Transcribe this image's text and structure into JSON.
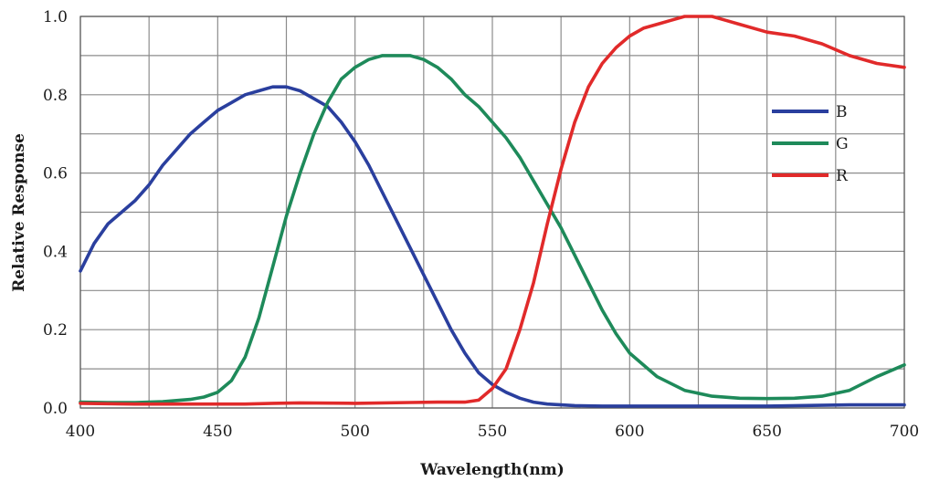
{
  "chart_data": {
    "type": "line",
    "title": "",
    "xlabel": "Wavelength(nm)",
    "ylabel": "Relative Response",
    "xlim": [
      400,
      700
    ],
    "ylim": [
      0,
      1.0
    ],
    "grid": true,
    "legend_position": "right",
    "x_ticks": [
      "400",
      "450",
      "500",
      "550",
      "600",
      "650",
      "700"
    ],
    "y_ticks": [
      "0.0",
      "0.2",
      "0.4",
      "0.6",
      "0.8",
      "1.0"
    ],
    "series": [
      {
        "name": "B",
        "color": "#2a3f9e",
        "x": [
          400,
          405,
          410,
          415,
          420,
          425,
          430,
          435,
          440,
          445,
          450,
          455,
          460,
          465,
          470,
          475,
          480,
          485,
          490,
          495,
          500,
          505,
          510,
          515,
          520,
          525,
          530,
          535,
          540,
          545,
          550,
          555,
          560,
          565,
          570,
          575,
          580,
          590,
          600,
          620,
          650,
          680,
          700
        ],
        "y": [
          0.35,
          0.42,
          0.47,
          0.5,
          0.53,
          0.57,
          0.62,
          0.66,
          0.7,
          0.73,
          0.76,
          0.78,
          0.8,
          0.81,
          0.82,
          0.82,
          0.81,
          0.79,
          0.77,
          0.73,
          0.68,
          0.62,
          0.55,
          0.48,
          0.41,
          0.34,
          0.27,
          0.2,
          0.14,
          0.09,
          0.06,
          0.04,
          0.025,
          0.015,
          0.01,
          0.008,
          0.006,
          0.005,
          0.005,
          0.005,
          0.005,
          0.008,
          0.008
        ]
      },
      {
        "name": "G",
        "color": "#1e8a5a",
        "x": [
          400,
          410,
          420,
          430,
          440,
          445,
          450,
          455,
          460,
          465,
          470,
          475,
          480,
          485,
          490,
          495,
          500,
          505,
          510,
          515,
          520,
          525,
          530,
          535,
          540,
          545,
          550,
          555,
          560,
          565,
          570,
          575,
          580,
          585,
          590,
          595,
          600,
          610,
          620,
          630,
          640,
          650,
          660,
          670,
          680,
          690,
          700
        ],
        "y": [
          0.015,
          0.014,
          0.014,
          0.016,
          0.022,
          0.028,
          0.04,
          0.07,
          0.13,
          0.23,
          0.36,
          0.49,
          0.6,
          0.7,
          0.78,
          0.84,
          0.87,
          0.89,
          0.9,
          0.9,
          0.9,
          0.89,
          0.87,
          0.84,
          0.8,
          0.77,
          0.73,
          0.69,
          0.64,
          0.58,
          0.52,
          0.46,
          0.39,
          0.32,
          0.25,
          0.19,
          0.14,
          0.08,
          0.045,
          0.03,
          0.025,
          0.024,
          0.025,
          0.03,
          0.045,
          0.08,
          0.11
        ]
      },
      {
        "name": "R",
        "color": "#e12a2a",
        "x": [
          400,
          420,
          440,
          460,
          470,
          480,
          500,
          520,
          530,
          540,
          545,
          550,
          555,
          560,
          565,
          570,
          575,
          580,
          585,
          590,
          595,
          600,
          605,
          610,
          615,
          620,
          625,
          630,
          635,
          640,
          650,
          660,
          670,
          680,
          690,
          700
        ],
        "y": [
          0.012,
          0.01,
          0.01,
          0.01,
          0.012,
          0.013,
          0.012,
          0.014,
          0.015,
          0.015,
          0.02,
          0.05,
          0.1,
          0.2,
          0.32,
          0.47,
          0.61,
          0.73,
          0.82,
          0.88,
          0.92,
          0.95,
          0.97,
          0.98,
          0.99,
          1.0,
          1.0,
          1.0,
          0.99,
          0.98,
          0.96,
          0.95,
          0.93,
          0.9,
          0.88,
          0.87
        ]
      }
    ]
  }
}
